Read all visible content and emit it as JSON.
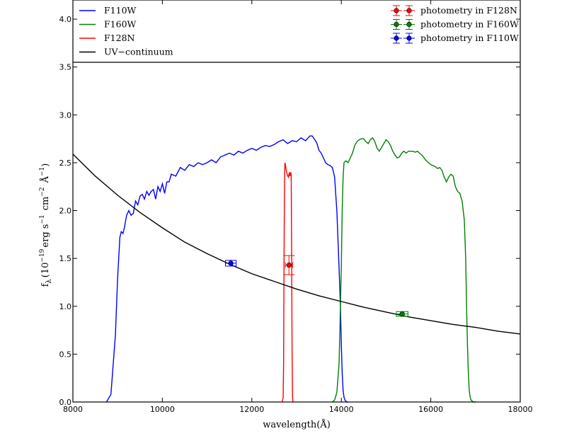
{
  "chart_data": {
    "type": "line",
    "xlabel": "wavelength(Å)",
    "ylabel": "f",
    "ylabel_sub": "λ",
    "ylabel_rest": "(10",
    "ylabel_exp1": "−19",
    "ylabel_erg": "erg s",
    "ylabel_exp2": "−1",
    "ylabel_cm": "cm",
    "ylabel_exp3": "−2",
    "ylabel_ang": "Å",
    "ylabel_exp4": "−1",
    "ylabel_close": ")",
    "xlim": [
      8000,
      18000
    ],
    "ylim": [
      0,
      4.2
    ],
    "xticks": [
      8000,
      10000,
      12000,
      14000,
      16000,
      18000
    ],
    "xtick_labels": [
      "8000",
      "10000",
      "12000",
      "14000",
      "16000",
      "18000"
    ],
    "yticks": [
      0.0,
      0.5,
      1.0,
      1.5,
      2.0,
      2.5,
      3.0,
      3.5,
      4.0
    ],
    "ytick_labels": [
      "0.0",
      "0.5",
      "1.0",
      "1.5",
      "2.0",
      "2.5",
      "3.0",
      "3.5",
      "4.0"
    ],
    "grid": false,
    "legend_left": [
      "F110W",
      "F160W",
      "F128N",
      "UV−continuum"
    ],
    "legend_right": [
      "photometry in F128N",
      "photometry in F160W",
      "photometry in F110W"
    ],
    "series": [
      {
        "name": "F110W",
        "color": "#0000ff",
        "x": [
          8750,
          8850,
          8950,
          9000,
          9050,
          9080,
          9120,
          9150,
          9200,
          9250,
          9300,
          9350,
          9400,
          9450,
          9500,
          9550,
          9600,
          9650,
          9700,
          9750,
          9800,
          9850,
          9900,
          9950,
          10000,
          10050,
          10100,
          10150,
          10200,
          10300,
          10400,
          10500,
          10600,
          10700,
          10800,
          10900,
          11000,
          11100,
          11200,
          11300,
          11400,
          11500,
          11600,
          11700,
          11800,
          11900,
          12000,
          12100,
          12200,
          12300,
          12400,
          12500,
          12600,
          12700,
          12800,
          12900,
          13000,
          13100,
          13200,
          13300,
          13350,
          13450,
          13500,
          13550,
          13600,
          13650,
          13700,
          13750,
          13800,
          13850,
          13900,
          13950,
          13980,
          14000,
          14020,
          14040,
          14060,
          14080,
          14100,
          14120,
          14150
        ],
        "y": [
          0.0,
          0.08,
          0.7,
          1.3,
          1.72,
          1.78,
          1.76,
          1.82,
          1.95,
          2.0,
          1.95,
          1.97,
          2.1,
          2.06,
          2.15,
          2.17,
          2.12,
          2.2,
          2.16,
          2.2,
          2.22,
          2.12,
          2.25,
          2.2,
          2.28,
          2.18,
          2.3,
          2.3,
          2.38,
          2.36,
          2.45,
          2.42,
          2.48,
          2.46,
          2.5,
          2.48,
          2.5,
          2.53,
          2.5,
          2.56,
          2.58,
          2.6,
          2.58,
          2.62,
          2.6,
          2.63,
          2.65,
          2.63,
          2.66,
          2.68,
          2.67,
          2.69,
          2.72,
          2.74,
          2.7,
          2.73,
          2.72,
          2.76,
          2.73,
          2.78,
          2.78,
          2.71,
          2.63,
          2.6,
          2.55,
          2.5,
          2.48,
          2.47,
          2.45,
          2.35,
          2.0,
          1.4,
          1.0,
          0.6,
          0.3,
          0.12,
          0.05,
          0.02,
          0.01,
          0.0,
          0.0
        ]
      },
      {
        "name": "F160W",
        "color": "#008000",
        "x": [
          13800,
          13850,
          13900,
          13950,
          14000,
          14020,
          14040,
          14060,
          14100,
          14150,
          14200,
          14250,
          14300,
          14350,
          14400,
          14450,
          14500,
          14550,
          14600,
          14650,
          14700,
          14750,
          14800,
          14850,
          14900,
          14950,
          15000,
          15050,
          15100,
          15150,
          15200,
          15250,
          15300,
          15350,
          15400,
          15450,
          15500,
          15550,
          15600,
          15650,
          15700,
          15750,
          15800,
          15850,
          15900,
          15950,
          16000,
          16050,
          16100,
          16150,
          16200,
          16250,
          16300,
          16350,
          16400,
          16450,
          16500,
          16550,
          16600,
          16650,
          16700,
          16750,
          16780,
          16800,
          16820,
          16840,
          16860,
          16880,
          16900,
          16950,
          17000
        ],
        "y": [
          0.0,
          0.02,
          0.1,
          0.4,
          1.4,
          2.0,
          2.35,
          2.5,
          2.52,
          2.5,
          2.55,
          2.6,
          2.68,
          2.72,
          2.74,
          2.75,
          2.75,
          2.72,
          2.7,
          2.74,
          2.76,
          2.72,
          2.65,
          2.62,
          2.66,
          2.7,
          2.74,
          2.72,
          2.68,
          2.62,
          2.58,
          2.55,
          2.56,
          2.6,
          2.62,
          2.6,
          2.62,
          2.62,
          2.62,
          2.61,
          2.62,
          2.6,
          2.58,
          2.55,
          2.52,
          2.5,
          2.48,
          2.47,
          2.46,
          2.44,
          2.45,
          2.42,
          2.35,
          2.3,
          2.35,
          2.38,
          2.36,
          2.25,
          2.2,
          2.18,
          2.1,
          1.9,
          1.5,
          1.0,
          0.6,
          0.3,
          0.12,
          0.05,
          0.02,
          0.0,
          0.0
        ]
      },
      {
        "name": "F128N",
        "color": "#ff0000",
        "x": [
          12680,
          12700,
          12710,
          12720,
          12730,
          12740,
          12750,
          12760,
          12770,
          12780,
          12790,
          12800,
          12810,
          12820,
          12830,
          12840,
          12850,
          12860,
          12870,
          12880,
          12890,
          12900,
          12910,
          12920
        ],
        "y": [
          0.0,
          0.05,
          0.4,
          1.5,
          2.3,
          2.5,
          2.48,
          2.45,
          2.42,
          2.4,
          2.38,
          2.36,
          2.36,
          2.35,
          2.38,
          2.4,
          2.36,
          2.38,
          2.4,
          2.36,
          1.5,
          0.5,
          0.05,
          0.0
        ]
      },
      {
        "name": "UV−continuum",
        "color": "#000000",
        "x": [
          8000,
          8500,
          9000,
          9500,
          10000,
          10500,
          11000,
          11500,
          12000,
          12500,
          13000,
          13500,
          14000,
          14500,
          15000,
          15500,
          16000,
          16500,
          17000,
          17500,
          18000
        ],
        "y": [
          2.59,
          2.36,
          2.16,
          1.98,
          1.82,
          1.67,
          1.55,
          1.44,
          1.34,
          1.26,
          1.18,
          1.11,
          1.05,
          0.99,
          0.94,
          0.89,
          0.85,
          0.81,
          0.78,
          0.74,
          0.71
        ]
      }
    ],
    "photometry": [
      {
        "name": "photometry in F110W",
        "color": "#0000ff",
        "x": 11530,
        "y": 1.45,
        "xerr": 120,
        "yerr": 0.03
      },
      {
        "name": "photometry in F128N",
        "color": "#ff0000",
        "x": 12830,
        "y": 1.43,
        "xerr": 80,
        "yerr": 0.1
      },
      {
        "name": "photometry in F160W",
        "color": "#008000",
        "x": 15360,
        "y": 0.92,
        "xerr": 130,
        "yerr": 0.025
      }
    ]
  }
}
